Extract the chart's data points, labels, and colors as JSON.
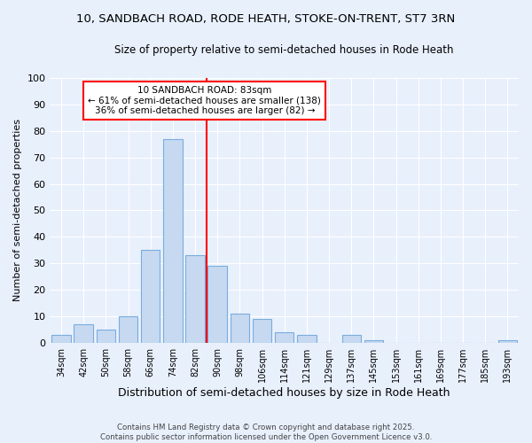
{
  "title": "10, SANDBACH ROAD, RODE HEATH, STOKE-ON-TRENT, ST7 3RN",
  "subtitle": "Size of property relative to semi-detached houses in Rode Heath",
  "xlabel": "Distribution of semi-detached houses by size in Rode Heath",
  "ylabel": "Number of semi-detached properties",
  "categories": [
    "34sqm",
    "42sqm",
    "50sqm",
    "58sqm",
    "66sqm",
    "74sqm",
    "82sqm",
    "90sqm",
    "98sqm",
    "106sqm",
    "114sqm",
    "121sqm",
    "129sqm",
    "137sqm",
    "145sqm",
    "153sqm",
    "161sqm",
    "169sqm",
    "177sqm",
    "185sqm",
    "193sqm"
  ],
  "values": [
    3,
    7,
    5,
    10,
    35,
    77,
    33,
    29,
    11,
    9,
    4,
    3,
    0,
    3,
    1,
    0,
    0,
    0,
    0,
    0,
    1
  ],
  "bar_color": "#c6d9f0",
  "bar_edge_color": "#7aadde",
  "vline_color": "red",
  "annotation_title": "10 SANDBACH ROAD: 83sqm",
  "annotation_line1": "← 61% of semi-detached houses are smaller (138)",
  "annotation_line2": "36% of semi-detached houses are larger (82) →",
  "annotation_box_color": "white",
  "annotation_box_edge": "red",
  "ylim": [
    0,
    100
  ],
  "footer": "Contains HM Land Registry data © Crown copyright and database right 2025.\nContains public sector information licensed under the Open Government Licence v3.0.",
  "background_color": "#e8f0fc",
  "grid_color": "white",
  "title_fontsize": 9.5,
  "subtitle_fontsize": 8.5
}
